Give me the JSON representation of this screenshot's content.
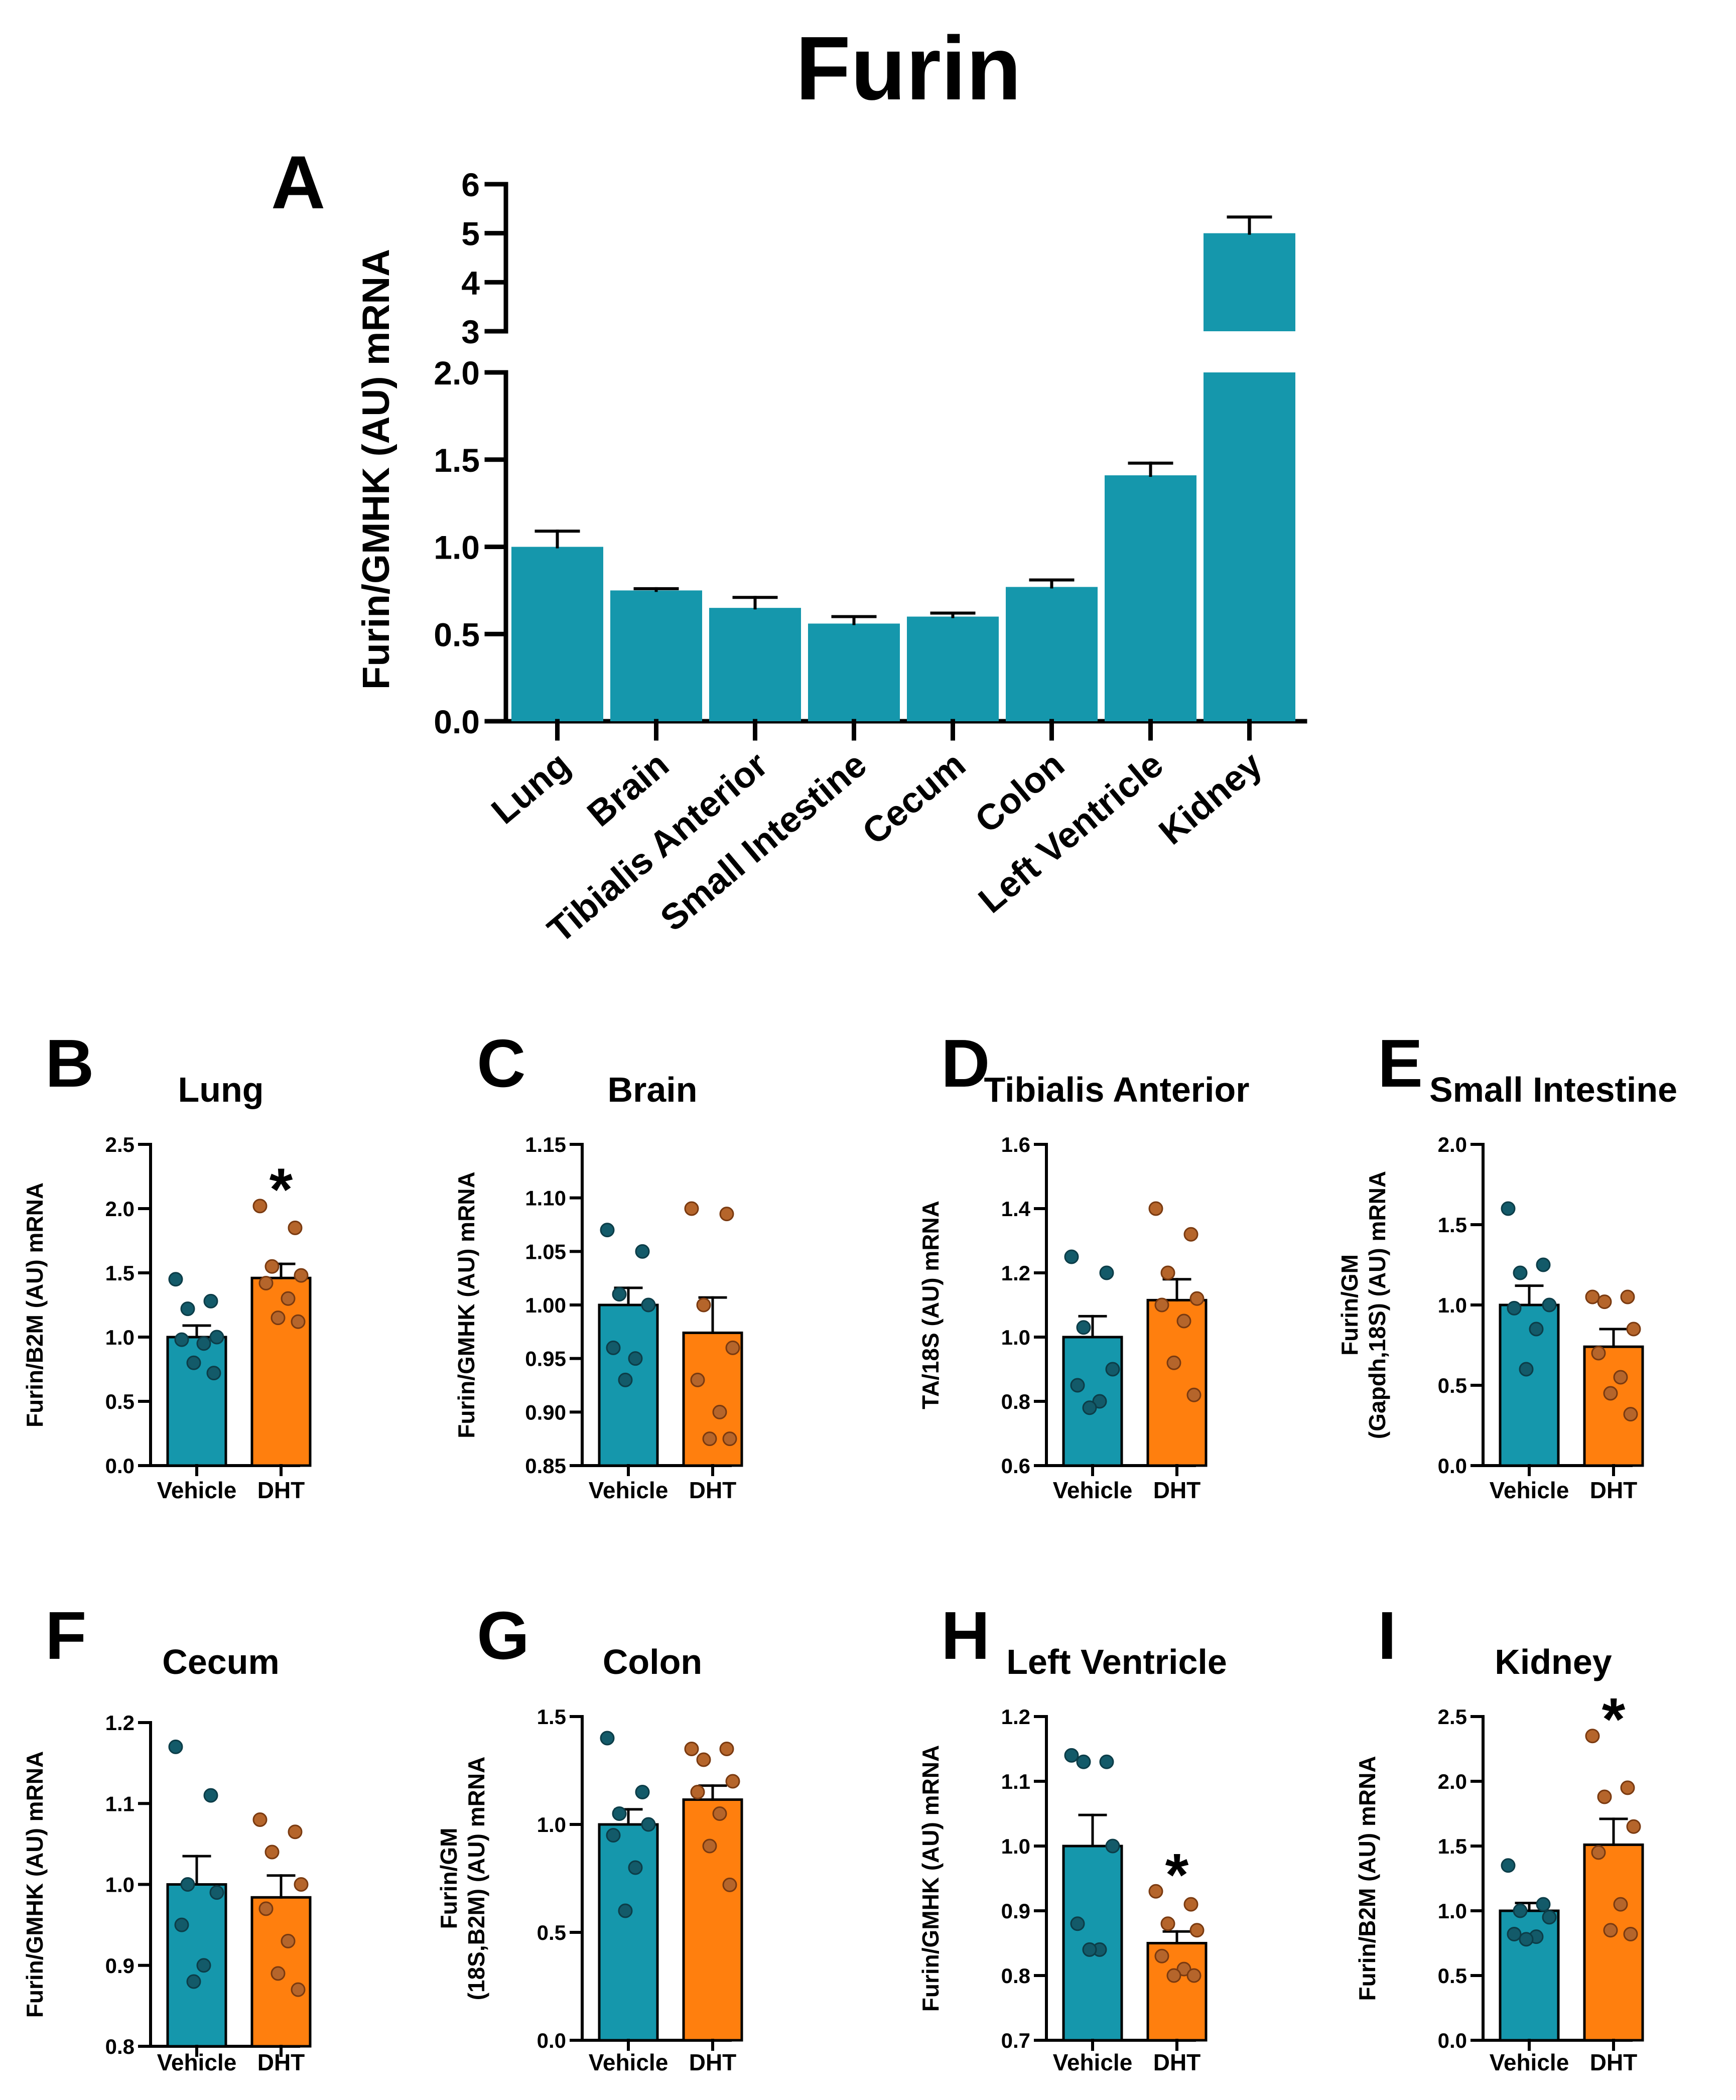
{
  "figure_title": "Furin",
  "colors": {
    "vehicle": "#1597AC",
    "dht": "#FF7F0E",
    "vehicle_dot": "#135A69",
    "dht_dot": "#B5652B"
  },
  "chart_data": [
    {
      "panel": "A",
      "type": "bar",
      "title": "",
      "ylabel": "Furin/GMHK (AU) mRNA",
      "categories": [
        "Lung",
        "Brain",
        "Tibialis Anterior",
        "Small Intestine",
        "Cecum",
        "Colon",
        "Left Ventricle",
        "Kidney"
      ],
      "values": [
        1.0,
        0.75,
        0.65,
        0.56,
        0.6,
        0.77,
        1.41,
        5.0
      ],
      "errors": [
        0.09,
        0.01,
        0.06,
        0.04,
        0.02,
        0.04,
        0.07,
        0.33
      ],
      "ylim": [
        0,
        6
      ],
      "axis_break": [
        2.0,
        3.0
      ],
      "yticks_lower": [
        "0.0",
        "0.5",
        "1.0",
        "1.5",
        "2.0"
      ],
      "yticks_upper": [
        "3",
        "4",
        "5",
        "6"
      ],
      "color": "#1597AC"
    },
    {
      "panel": "B",
      "type": "bar",
      "title": "Lung",
      "ylabel": [
        "Furin/B2M (AU) mRNA"
      ],
      "ylim": [
        0,
        2.5
      ],
      "yticks": [
        "0.0",
        "0.5",
        "1.0",
        "1.5",
        "2.0",
        "2.5"
      ],
      "categories": [
        "Vehicle",
        "DHT"
      ],
      "means": [
        1.0,
        1.46
      ],
      "sems": [
        0.09,
        0.11
      ],
      "points": [
        [
          1.45,
          1.28,
          1.22,
          1.0,
          0.98,
          0.95,
          0.8,
          0.72
        ],
        [
          2.02,
          1.85,
          1.55,
          1.48,
          1.42,
          1.3,
          1.15,
          1.12
        ]
      ],
      "significance": [
        "",
        "*"
      ]
    },
    {
      "panel": "C",
      "type": "bar",
      "title": "Brain",
      "ylabel": [
        "Furin/GMHK (AU) mRNA"
      ],
      "ylim": [
        0.85,
        1.15
      ],
      "yticks": [
        "0.85",
        "0.90",
        "0.95",
        "1.00",
        "1.05",
        "1.10",
        "1.15"
      ],
      "categories": [
        "Vehicle",
        "DHT"
      ],
      "means": [
        1.0,
        0.974
      ],
      "sems": [
        0.016,
        0.033
      ],
      "points": [
        [
          1.07,
          1.05,
          1.01,
          1.0,
          0.96,
          0.95,
          0.93
        ],
        [
          1.09,
          1.085,
          1.0,
          0.96,
          0.93,
          0.9,
          0.875,
          0.875
        ]
      ],
      "significance": [
        "",
        ""
      ]
    },
    {
      "panel": "D",
      "type": "bar",
      "title": "Tibialis Anterior",
      "ylabel": [
        "TA/18S (AU) mRNA"
      ],
      "ylim": [
        0.6,
        1.6
      ],
      "yticks": [
        "0.6",
        "0.8",
        "1.0",
        "1.2",
        "1.4",
        "1.6"
      ],
      "categories": [
        "Vehicle",
        "DHT"
      ],
      "means": [
        1.0,
        1.115
      ],
      "sems": [
        0.065,
        0.065
      ],
      "points": [
        [
          1.25,
          1.2,
          1.03,
          0.9,
          0.85,
          0.8,
          0.78
        ],
        [
          1.4,
          1.32,
          1.2,
          1.12,
          1.1,
          1.05,
          0.92,
          0.82
        ]
      ],
      "significance": [
        "",
        ""
      ]
    },
    {
      "panel": "E",
      "type": "bar",
      "title": "Small Intestine",
      "ylabel": [
        "Furin/GM",
        "(Gapdh,18S) (AU) mRNA"
      ],
      "ylim": [
        0,
        2.0
      ],
      "yticks": [
        "0.0",
        "0.5",
        "1.0",
        "1.5",
        "2.0"
      ],
      "categories": [
        "Vehicle",
        "DHT"
      ],
      "means": [
        1.0,
        0.74
      ],
      "sems": [
        0.12,
        0.11
      ],
      "points": [
        [
          1.6,
          1.25,
          1.2,
          1.0,
          0.98,
          0.85,
          0.6
        ],
        [
          1.05,
          1.05,
          1.02,
          0.85,
          0.7,
          0.55,
          0.45,
          0.32
        ]
      ],
      "significance": [
        "",
        ""
      ]
    },
    {
      "panel": "F",
      "type": "bar",
      "title": "Cecum",
      "ylabel": [
        "Furin/GMHK (AU) mRNA"
      ],
      "ylim": [
        0.8,
        1.2
      ],
      "yticks": [
        "0.8",
        "0.9",
        "1.0",
        "1.1",
        "1.2"
      ],
      "categories": [
        "Vehicle",
        "DHT"
      ],
      "means": [
        1.0,
        0.984
      ],
      "sems": [
        0.035,
        0.027
      ],
      "points": [
        [
          1.17,
          1.11,
          1.0,
          0.99,
          0.95,
          0.9,
          0.88
        ],
        [
          1.08,
          1.065,
          1.04,
          1.0,
          0.97,
          0.93,
          0.89,
          0.87
        ]
      ],
      "significance": [
        "",
        ""
      ]
    },
    {
      "panel": "G",
      "type": "bar",
      "title": "Colon",
      "ylabel": [
        "Furin/GM",
        "(18S,B2M) (AU) mRNA"
      ],
      "ylim": [
        0,
        1.5
      ],
      "yticks": [
        "0.0",
        "0.5",
        "1.0",
        "1.5"
      ],
      "categories": [
        "Vehicle",
        "DHT"
      ],
      "means": [
        1.0,
        1.115
      ],
      "sems": [
        0.07,
        0.065
      ],
      "points": [
        [
          1.4,
          1.15,
          1.05,
          1.0,
          0.95,
          0.8,
          0.6
        ],
        [
          1.35,
          1.35,
          1.3,
          1.2,
          1.15,
          1.05,
          0.9,
          0.72
        ]
      ],
      "significance": [
        "",
        ""
      ]
    },
    {
      "panel": "H",
      "type": "bar",
      "title": "Left Ventricle",
      "ylabel": [
        "Furin/GMHK (AU) mRNA"
      ],
      "ylim": [
        0.7,
        1.2
      ],
      "yticks": [
        "0.7",
        "0.8",
        "0.9",
        "1.0",
        "1.1",
        "1.2"
      ],
      "categories": [
        "Vehicle",
        "DHT"
      ],
      "means": [
        1.0,
        0.85
      ],
      "sems": [
        0.048,
        0.018
      ],
      "points": [
        [
          1.14,
          1.13,
          1.13,
          1.0,
          0.88,
          0.84,
          0.84
        ],
        [
          0.93,
          0.91,
          0.88,
          0.87,
          0.83,
          0.81,
          0.8,
          0.8
        ]
      ],
      "significance": [
        "",
        "*"
      ]
    },
    {
      "panel": "I",
      "type": "bar",
      "title": "Kidney",
      "ylabel": [
        "Furin/B2M (AU) mRNA"
      ],
      "ylim": [
        0,
        2.5
      ],
      "yticks": [
        "0.0",
        "0.5",
        "1.0",
        "1.5",
        "2.0",
        "2.5"
      ],
      "categories": [
        "Vehicle",
        "DHT"
      ],
      "means": [
        1.0,
        1.51
      ],
      "sems": [
        0.06,
        0.2
      ],
      "points": [
        [
          1.35,
          1.05,
          1.0,
          0.95,
          0.82,
          0.8,
          0.78
        ],
        [
          2.35,
          1.95,
          1.88,
          1.65,
          1.45,
          1.05,
          0.85,
          0.82
        ]
      ],
      "significance": [
        "",
        "*"
      ]
    }
  ]
}
